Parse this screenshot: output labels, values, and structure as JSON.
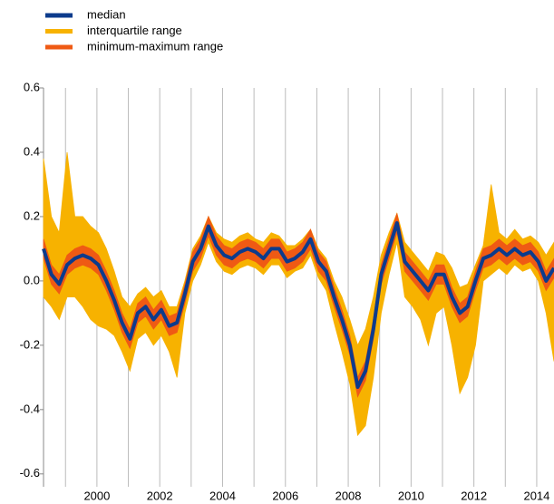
{
  "chart_data": {
    "type": "band",
    "x": [
      1998.3,
      1998.55,
      1998.8,
      1999.05,
      1999.3,
      1999.55,
      1999.8,
      2000.05,
      2000.3,
      2000.55,
      2000.8,
      2001.05,
      2001.3,
      2001.55,
      2001.8,
      2002.05,
      2002.3,
      2002.55,
      2002.8,
      2003.05,
      2003.3,
      2003.55,
      2003.8,
      2004.05,
      2004.3,
      2004.55,
      2004.8,
      2005.05,
      2005.3,
      2005.55,
      2005.8,
      2006.05,
      2006.3,
      2006.55,
      2006.8,
      2007.05,
      2007.3,
      2007.55,
      2007.8,
      2008.05,
      2008.3,
      2008.55,
      2008.8,
      2009.05,
      2009.3,
      2009.55,
      2009.8,
      2010.05,
      2010.3,
      2010.55,
      2010.8,
      2011.05,
      2011.3,
      2011.55,
      2011.8,
      2012.05,
      2012.3,
      2012.55,
      2012.8,
      2013.05,
      2013.3,
      2013.55,
      2013.8,
      2014.05,
      2014.3,
      2014.55
    ],
    "series": [
      {
        "name": "median",
        "color": "#0c3b8c",
        "values": [
          0.1,
          0.02,
          -0.01,
          0.05,
          0.07,
          0.08,
          0.07,
          0.05,
          0.0,
          -0.06,
          -0.13,
          -0.18,
          -0.1,
          -0.08,
          -0.12,
          -0.09,
          -0.14,
          -0.13,
          -0.04,
          0.06,
          0.1,
          0.17,
          0.11,
          0.08,
          0.07,
          0.09,
          0.1,
          0.09,
          0.07,
          0.1,
          0.1,
          0.06,
          0.07,
          0.09,
          0.13,
          0.06,
          0.03,
          -0.05,
          -0.12,
          -0.2,
          -0.33,
          -0.28,
          -0.15,
          0.02,
          0.1,
          0.18,
          0.06,
          0.03,
          0.0,
          -0.03,
          0.02,
          0.02,
          -0.05,
          -0.1,
          -0.08,
          0.0,
          0.07,
          0.08,
          0.1,
          0.08,
          0.1,
          0.08,
          0.09,
          0.06,
          0.0,
          0.04
        ]
      },
      {
        "name": "interquartile range",
        "color": "#f7b200",
        "high": [
          0.38,
          0.2,
          0.15,
          0.4,
          0.2,
          0.2,
          0.17,
          0.15,
          0.1,
          0.03,
          -0.05,
          -0.08,
          -0.04,
          -0.02,
          -0.05,
          -0.03,
          -0.08,
          -0.08,
          0.0,
          0.1,
          0.14,
          0.2,
          0.15,
          0.13,
          0.12,
          0.14,
          0.15,
          0.13,
          0.12,
          0.15,
          0.14,
          0.11,
          0.11,
          0.13,
          0.16,
          0.1,
          0.07,
          0.0,
          -0.05,
          -0.12,
          -0.2,
          -0.15,
          -0.05,
          0.08,
          0.15,
          0.21,
          0.12,
          0.09,
          0.06,
          0.03,
          0.09,
          0.08,
          0.04,
          -0.02,
          -0.01,
          0.05,
          0.11,
          0.3,
          0.15,
          0.13,
          0.16,
          0.13,
          0.14,
          0.12,
          0.08,
          0.12
        ],
        "low": [
          -0.05,
          -0.08,
          -0.12,
          -0.05,
          -0.05,
          -0.08,
          -0.12,
          -0.14,
          -0.15,
          -0.17,
          -0.22,
          -0.28,
          -0.18,
          -0.16,
          -0.2,
          -0.17,
          -0.22,
          -0.3,
          -0.1,
          0.0,
          0.05,
          0.12,
          0.06,
          0.03,
          0.02,
          0.04,
          0.05,
          0.04,
          0.02,
          0.05,
          0.05,
          0.01,
          0.03,
          0.04,
          0.08,
          0.01,
          -0.03,
          -0.13,
          -0.22,
          -0.32,
          -0.48,
          -0.45,
          -0.3,
          -0.1,
          0.02,
          0.12,
          -0.05,
          -0.08,
          -0.12,
          -0.2,
          -0.1,
          -0.08,
          -0.2,
          -0.35,
          -0.3,
          -0.2,
          0.0,
          0.02,
          0.04,
          0.02,
          0.05,
          0.03,
          0.04,
          0.0,
          -0.1,
          -0.25
        ]
      },
      {
        "name": "minimum-maximum range",
        "color": "#ef5a14",
        "high": [
          0.13,
          0.05,
          0.02,
          0.08,
          0.1,
          0.11,
          0.1,
          0.08,
          0.03,
          -0.03,
          -0.1,
          -0.15,
          -0.07,
          -0.05,
          -0.09,
          -0.06,
          -0.11,
          -0.1,
          -0.01,
          0.09,
          0.13,
          0.2,
          0.14,
          0.11,
          0.1,
          0.12,
          0.13,
          0.12,
          0.1,
          0.13,
          0.13,
          0.09,
          0.1,
          0.12,
          0.16,
          0.09,
          0.06,
          -0.02,
          -0.09,
          -0.17,
          -0.3,
          -0.25,
          -0.12,
          0.05,
          0.13,
          0.21,
          0.09,
          0.06,
          0.03,
          0.0,
          0.05,
          0.05,
          -0.02,
          -0.07,
          -0.05,
          0.03,
          0.1,
          0.11,
          0.13,
          0.11,
          0.13,
          0.11,
          0.12,
          0.09,
          0.03,
          0.07
        ],
        "low": [
          0.07,
          -0.01,
          -0.04,
          0.02,
          0.04,
          0.05,
          0.04,
          0.02,
          -0.03,
          -0.09,
          -0.16,
          -0.21,
          -0.13,
          -0.11,
          -0.15,
          -0.12,
          -0.17,
          -0.16,
          -0.07,
          0.03,
          0.07,
          0.14,
          0.08,
          0.05,
          0.04,
          0.06,
          0.07,
          0.06,
          0.04,
          0.07,
          0.07,
          0.03,
          0.04,
          0.06,
          0.1,
          0.03,
          0.0,
          -0.08,
          -0.15,
          -0.23,
          -0.36,
          -0.31,
          -0.18,
          -0.01,
          0.07,
          0.15,
          0.03,
          0.0,
          -0.03,
          -0.06,
          -0.01,
          -0.01,
          -0.08,
          -0.13,
          -0.11,
          -0.03,
          0.04,
          0.05,
          0.07,
          0.05,
          0.07,
          0.05,
          0.06,
          0.03,
          -0.03,
          0.01
        ]
      }
    ],
    "xlim": [
      1998.3,
      2014.55
    ],
    "xticks": [
      2000,
      2002,
      2004,
      2006,
      2008,
      2010,
      2012,
      2014
    ],
    "minor_xticks": [
      1999,
      2001,
      2003,
      2005,
      2007,
      2009,
      2011,
      2013
    ],
    "ylim": [
      -0.64,
      0.6
    ],
    "yticks": [
      0.6,
      0.4,
      0.2,
      {
        "value": 0,
        "label": "0.0"
      },
      -0.2,
      -0.4,
      -0.6
    ],
    "grid": "x"
  }
}
